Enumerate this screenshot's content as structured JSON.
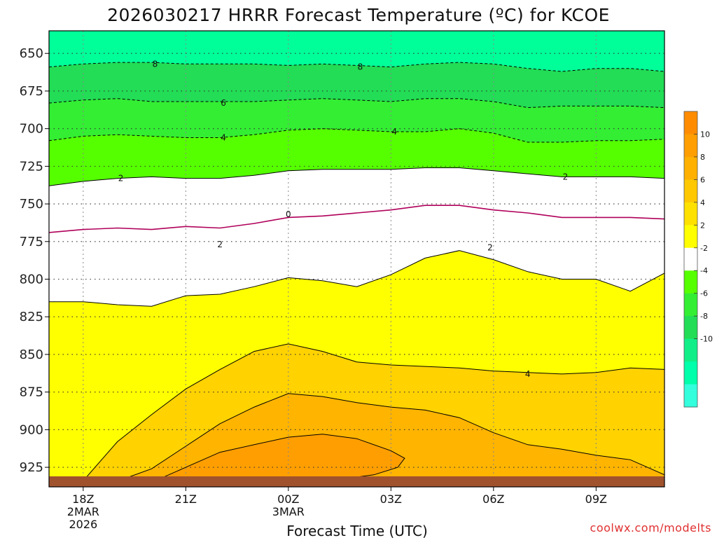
{
  "chart_data": {
    "type": "heatmap",
    "title": "2026030217 HRRR Forecast Temperature (ºC) for KCOE",
    "xlabel": "Forecast Time (UTC)",
    "credit": "coolwx.com/modelts",
    "y_ticks": [
      "650",
      "675",
      "700",
      "725",
      "750",
      "775",
      "800",
      "825",
      "850",
      "875",
      "900",
      "925"
    ],
    "y_tick_values": [
      650,
      675,
      700,
      725,
      750,
      775,
      800,
      825,
      850,
      875,
      900,
      925
    ],
    "x_ticks": [
      {
        "hour": 18,
        "lines": [
          "18Z",
          "2MAR",
          "2026"
        ]
      },
      {
        "hour": 21,
        "lines": [
          "21Z"
        ]
      },
      {
        "hour": 24,
        "lines": [
          "00Z",
          "3MAR"
        ]
      },
      {
        "hour": 27,
        "lines": [
          "03Z"
        ]
      },
      {
        "hour": 30,
        "lines": [
          "06Z"
        ]
      },
      {
        "hour": 33,
        "lines": [
          "09Z"
        ]
      }
    ],
    "xlim": [
      17,
      35
    ],
    "ylim": [
      635,
      938
    ],
    "grid": true,
    "colorbar": {
      "labels": [
        "10",
        "8",
        "6",
        "4",
        "2",
        "-2",
        "-4",
        "-6",
        "-8",
        "-10"
      ],
      "colors": [
        "#ff8c00",
        "#ff9e00",
        "#ffb000",
        "#ffc800",
        "#ffe100",
        "#ffff00",
        "#ffffff",
        "#55ff00",
        "#33ee33",
        "#22dd55",
        "#11ee88",
        "#00ffaa",
        "#33ffdd"
      ]
    },
    "contour_labels": [
      {
        "text": "8",
        "x": 20.1,
        "y": 657
      },
      {
        "text": "8",
        "x": 26.1,
        "y": 659
      },
      {
        "text": "6",
        "x": 22.1,
        "y": 683
      },
      {
        "text": "4",
        "x": 22.1,
        "y": 706
      },
      {
        "text": "4",
        "x": 27.1,
        "y": 702
      },
      {
        "text": "2",
        "x": 19.1,
        "y": 733
      },
      {
        "text": "2",
        "x": 32.1,
        "y": 732
      },
      {
        "text": "0",
        "x": 24.0,
        "y": 757
      },
      {
        "text": "2",
        "x": 22.0,
        "y": 777
      },
      {
        "text": "2",
        "x": 29.9,
        "y": 779
      },
      {
        "text": "4",
        "x": 31.0,
        "y": 863
      }
    ],
    "series": [
      {
        "value": 8,
        "style": "dashed",
        "x": [
          17,
          18,
          19,
          20,
          21,
          22,
          23,
          24,
          25,
          26,
          27,
          28,
          29,
          30,
          31,
          32,
          33,
          34,
          35
        ],
        "y": [
          659,
          657,
          656,
          656,
          657,
          657,
          657,
          658,
          657,
          658,
          659,
          657,
          656,
          657,
          660,
          662,
          660,
          660,
          662
        ]
      },
      {
        "value": 6,
        "style": "dashed",
        "x": [
          17,
          18,
          19,
          20,
          21,
          22,
          23,
          24,
          25,
          26,
          27,
          28,
          29,
          30,
          31,
          32,
          33,
          34,
          35
        ],
        "y": [
          683,
          681,
          680,
          682,
          682,
          682,
          682,
          681,
          680,
          681,
          682,
          680,
          680,
          682,
          686,
          685,
          685,
          685,
          686
        ]
      },
      {
        "value": 4,
        "style": "dashed",
        "x": [
          17,
          18,
          19,
          20,
          21,
          22,
          23,
          24,
          25,
          26,
          27,
          28,
          29,
          30,
          31,
          32,
          33,
          34,
          35
        ],
        "y": [
          708,
          705,
          704,
          705,
          706,
          706,
          704,
          701,
          700,
          701,
          702,
          702,
          700,
          703,
          709,
          709,
          708,
          708,
          707
        ]
      },
      {
        "value": 2,
        "style": "solid",
        "x": [
          17,
          18,
          19,
          20,
          21,
          22,
          23,
          24,
          25,
          26,
          27,
          28,
          29,
          30,
          31,
          32,
          33,
          34,
          35
        ],
        "y": [
          738,
          735,
          733,
          732,
          733,
          733,
          731,
          728,
          727,
          727,
          727,
          726,
          726,
          728,
          730,
          732,
          732,
          732,
          733
        ]
      },
      {
        "value": 0,
        "style": "solid",
        "color": "#b0005a",
        "x": [
          17,
          18,
          19,
          20,
          21,
          22,
          23,
          24,
          25,
          26,
          27,
          28,
          29,
          30,
          31,
          32,
          33,
          34,
          35
        ],
        "y": [
          769,
          767,
          766,
          767,
          765,
          766,
          763,
          759,
          758,
          756,
          754,
          751,
          751,
          754,
          756,
          759,
          759,
          759,
          760
        ]
      },
      {
        "value": 2,
        "style": "solid",
        "x": [
          17,
          18,
          19,
          20,
          21,
          22,
          23,
          24,
          25,
          26,
          27,
          28,
          29,
          30,
          31,
          32,
          33,
          34,
          35
        ],
        "y": [
          815,
          815,
          817,
          818,
          811,
          810,
          805,
          799,
          801,
          805,
          797,
          786,
          781,
          787,
          795,
          800,
          800,
          808,
          796
        ]
      },
      {
        "value": 4,
        "style": "solid",
        "x": [
          17.1,
          18,
          19,
          20,
          21,
          22,
          23,
          24,
          25,
          26,
          27,
          28,
          29,
          30,
          31,
          32,
          33,
          34,
          35
        ],
        "y": [
          938,
          934,
          908,
          890,
          873,
          860,
          848,
          843,
          848,
          855,
          857,
          858,
          859,
          861,
          862,
          863,
          862,
          859,
          860
        ]
      },
      {
        "value": 6,
        "style": "solid",
        "x": [
          18.9,
          20,
          21,
          22,
          23,
          24,
          25,
          26,
          27,
          28,
          29,
          30,
          31,
          32,
          33,
          34,
          35
        ],
        "y": [
          935,
          926,
          911,
          896,
          885,
          876,
          878,
          882,
          885,
          887,
          892,
          902,
          910,
          913,
          917,
          920,
          930
        ]
      },
      {
        "value": 8,
        "style": "solid",
        "x": [
          20,
          21,
          22,
          23,
          24,
          25,
          26,
          27,
          27.4,
          27.2,
          26.5,
          25.5,
          24.5,
          23.5,
          22.5
        ],
        "y": [
          935,
          925,
          915,
          910,
          905,
          903,
          906,
          914,
          919,
          925,
          930,
          933,
          935,
          936,
          937
        ]
      }
    ]
  }
}
